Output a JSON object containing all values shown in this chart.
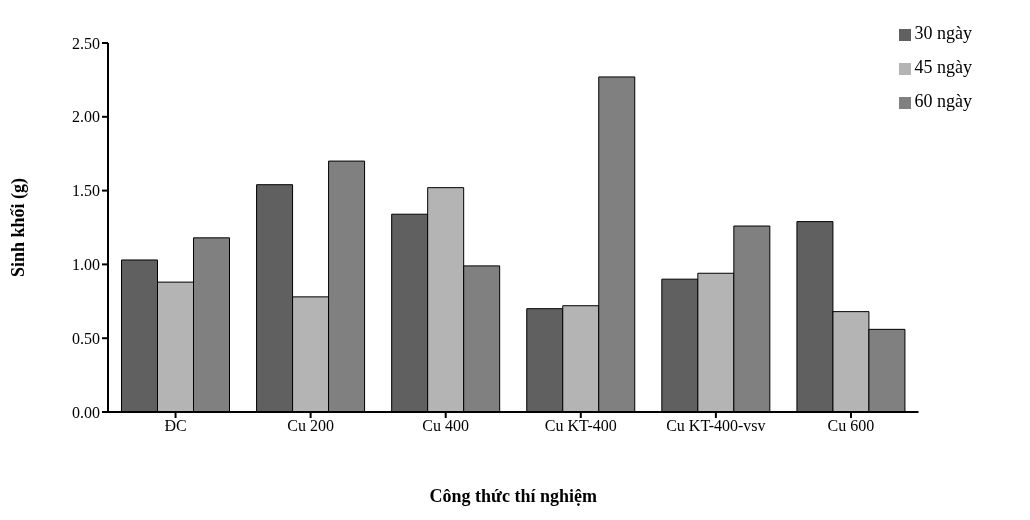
{
  "chart_data": {
    "type": "bar",
    "xlabel": "Công thức thí nghiệm",
    "ylabel": "Sinh khối (g)",
    "categories": [
      "ĐC",
      "Cu 200",
      "Cu 400",
      "Cu KT-400",
      "Cu KT-400-vsv",
      "Cu 600"
    ],
    "series": [
      {
        "name": "30 ngày",
        "color": "#606060",
        "values": [
          1.03,
          1.54,
          1.34,
          0.7,
          0.9,
          1.29
        ]
      },
      {
        "name": "45 ngày",
        "color": "#b4b4b4",
        "values": [
          0.88,
          0.78,
          1.52,
          0.72,
          0.94,
          0.68
        ]
      },
      {
        "name": "60 ngày",
        "color": "#808080",
        "values": [
          1.18,
          1.7,
          0.99,
          2.27,
          1.26,
          0.56
        ]
      }
    ],
    "ylim": [
      0,
      2.5
    ],
    "yticks": [
      {
        "value": 0,
        "label": "0.00"
      },
      {
        "value": 0.5,
        "label": "0.50"
      },
      {
        "value": 1,
        "label": "1.00"
      },
      {
        "value": 1.5,
        "label": "1.50"
      },
      {
        "value": 2,
        "label": "2.00"
      },
      {
        "value": 2.5,
        "label": "2.50"
      }
    ],
    "grid": false,
    "legend": "top right"
  }
}
